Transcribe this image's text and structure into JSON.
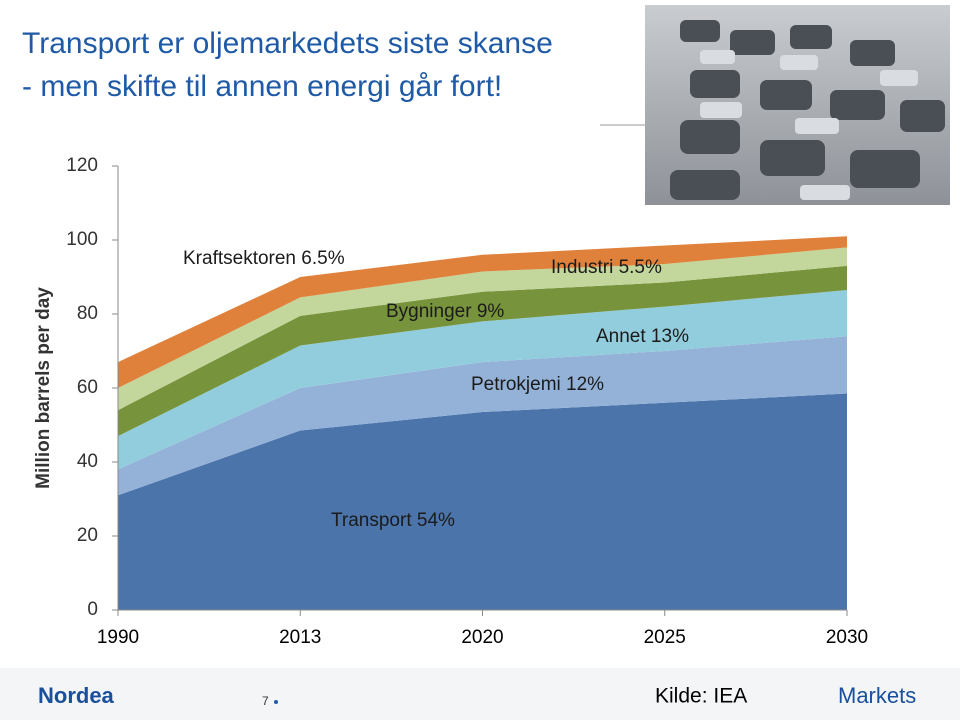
{
  "chart_data": {
    "type": "stacked-area",
    "title": [
      "Transport er oljemarkedets siste skanse",
      "- men skifte til annen energi går fort!"
    ],
    "y_label": "Million barrels per day",
    "categories": [
      "1990",
      "2013",
      "2020",
      "2025",
      "2030"
    ],
    "series": [
      {
        "name": "Transport 54%",
        "color": "#4a74aa",
        "values": [
          31,
          48.5,
          53.5,
          56,
          58.5
        ]
      },
      {
        "name": "Petrokjemi 12%",
        "color": "#94b2d8",
        "values": [
          7,
          11.5,
          13.5,
          14,
          15.5
        ]
      },
      {
        "name": "Annet 13%",
        "color": "#92cddd",
        "values": [
          9,
          11.5,
          11,
          12,
          12.5
        ]
      },
      {
        "name": "Bygninger 9%",
        "color": "#77933c",
        "values": [
          7,
          8,
          8,
          6.5,
          6.5
        ]
      },
      {
        "name": "Industri 5.5%",
        "color": "#c3d69b",
        "values": [
          6,
          5,
          5.5,
          5,
          5
        ]
      },
      {
        "name": "Kraftsektoren 6.5%",
        "color": "#e0813b",
        "values": [
          7,
          5.5,
          4.5,
          5,
          3
        ]
      }
    ],
    "ylim": [
      0,
      120
    ],
    "yticks": [
      0,
      20,
      40,
      60,
      80,
      100,
      120
    ]
  },
  "footer": {
    "logo": "Nordea",
    "page": "7",
    "source": "Kilde: IEA",
    "brand": "Markets"
  }
}
